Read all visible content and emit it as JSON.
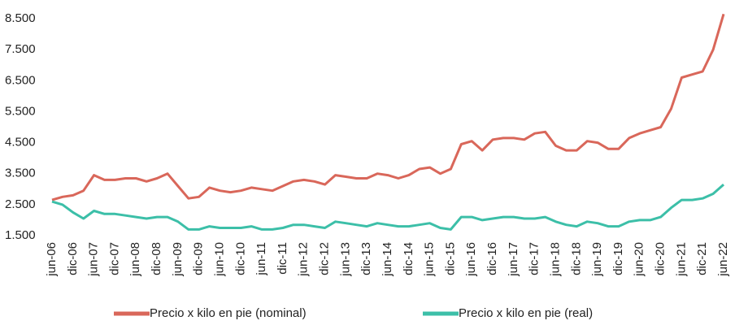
{
  "chart_data": {
    "type": "line",
    "categories": [
      "jun-06",
      null,
      "dic-06",
      null,
      "jun-07",
      null,
      "dic-07",
      null,
      "jun-08",
      null,
      "dic-08",
      null,
      "jun-09",
      null,
      "dic-09",
      null,
      "jun-10",
      null,
      "dic-10",
      null,
      "jun-11",
      null,
      "dic-11",
      null,
      "jun-12",
      null,
      "dic-12",
      null,
      "jun-13",
      null,
      "dic-13",
      null,
      "jun-14",
      null,
      "dic-14",
      null,
      "jun-15",
      null,
      "dic-15",
      null,
      "jun-16",
      null,
      "dic-16",
      null,
      "jun-17",
      null,
      "dic-17",
      null,
      "jun-18",
      null,
      "dic-18",
      null,
      "jun-19",
      null,
      "dic-19",
      null,
      "jun-20",
      null,
      "dic-20",
      null,
      "jun-21",
      null,
      "dic-21",
      null,
      "jun-22"
    ],
    "series": [
      {
        "name": "Precio x kilo en pie (nominal)",
        "color": "#d9675a",
        "values": [
          2650,
          2750,
          2800,
          2950,
          3450,
          3300,
          3300,
          3350,
          3350,
          3250,
          3350,
          3500,
          3100,
          2700,
          2750,
          3050,
          2950,
          2900,
          2950,
          3050,
          3000,
          2950,
          3100,
          3250,
          3300,
          3250,
          3150,
          3450,
          3400,
          3350,
          3350,
          3500,
          3450,
          3350,
          3450,
          3650,
          3700,
          3500,
          3650,
          4450,
          4550,
          4250,
          4600,
          4650,
          4650,
          4600,
          4800,
          4850,
          4400,
          4250,
          4250,
          4550,
          4500,
          4300,
          4300,
          4650,
          4800,
          4900,
          5000,
          5600,
          6600,
          6700,
          6800,
          7500,
          8650
        ]
      },
      {
        "name": "Precio x kilo en pie (real)",
        "color": "#3cbfa8",
        "values": [
          2600,
          2500,
          2250,
          2050,
          2300,
          2200,
          2200,
          2150,
          2100,
          2050,
          2100,
          2100,
          1950,
          1700,
          1700,
          1800,
          1750,
          1750,
          1750,
          1800,
          1700,
          1700,
          1750,
          1850,
          1850,
          1800,
          1750,
          1950,
          1900,
          1850,
          1800,
          1900,
          1850,
          1800,
          1800,
          1850,
          1900,
          1750,
          1700,
          2100,
          2100,
          2000,
          2050,
          2100,
          2100,
          2050,
          2050,
          2100,
          1950,
          1850,
          1800,
          1950,
          1900,
          1800,
          1800,
          1950,
          2000,
          2000,
          2100,
          2400,
          2650,
          2650,
          2700,
          2850,
          3150
        ]
      }
    ],
    "ylim": [
      1500,
      9000
    ],
    "yticks": [
      {
        "value": 1500,
        "label": "1.500"
      },
      {
        "value": 2500,
        "label": "2.500"
      },
      {
        "value": 3500,
        "label": "3.500"
      },
      {
        "value": 4500,
        "label": "4.500"
      },
      {
        "value": 5500,
        "label": "5.500"
      },
      {
        "value": 6500,
        "label": "6.500"
      },
      {
        "value": 7500,
        "label": "7.500"
      },
      {
        "value": 8500,
        "label": "8.500"
      }
    ],
    "legend": "bottom"
  }
}
